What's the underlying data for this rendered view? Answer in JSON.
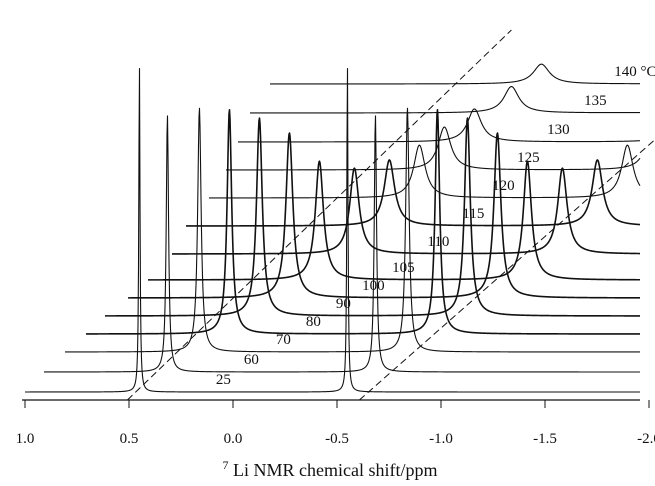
{
  "chart_data": {
    "type": "line",
    "subtype": "stacked-nmr-spectra",
    "title": "",
    "xlabel": "Li NMR chemical shift/ppm",
    "xlabel_superscript": "7",
    "ylabel": "",
    "xlim": [
      1.0,
      -2.0
    ],
    "x_reversed": true,
    "x_ticks": [
      1.0,
      0.5,
      0.0,
      -0.5,
      -1.0,
      -1.5,
      -2.0
    ],
    "x_tick_labels": [
      "1.0",
      "0.5",
      "0.0",
      "-0.5",
      "-1.0",
      "-1.5",
      "-2.0"
    ],
    "temperature_unit": "°C",
    "guide_lines": "dashed",
    "series": [
      {
        "label": "25",
        "temperature": 25,
        "peaks_ppm": [
          0.45,
          -0.55
        ],
        "peak_height": 1.0
      },
      {
        "label": "60",
        "temperature": 60,
        "peaks_ppm": [
          0.45,
          -0.55
        ],
        "peak_height": 0.78
      },
      {
        "label": "70",
        "temperature": 70,
        "peaks_ppm": [
          0.45,
          -0.55
        ],
        "peak_height": 0.74
      },
      {
        "label": "80",
        "temperature": 80,
        "peaks_ppm": [
          0.45,
          -0.55
        ],
        "peak_height": 0.68
      },
      {
        "label": "90",
        "temperature": 90,
        "peaks_ppm": [
          0.45,
          -0.55
        ],
        "peak_height": 0.6
      },
      {
        "label": "100",
        "temperature": 100,
        "peaks_ppm": [
          0.45,
          -0.55
        ],
        "peak_height": 0.5
      },
      {
        "label": "105",
        "temperature": 105,
        "peaks_ppm": [
          0.45,
          -0.55
        ],
        "peak_height": 0.36
      },
      {
        "label": "110",
        "temperature": 110,
        "peaks_ppm": [
          0.45,
          -0.55
        ],
        "peak_height": 0.26
      },
      {
        "label": "115",
        "temperature": 115,
        "peaks_ppm": [
          0.45,
          -0.55
        ],
        "peak_height": 0.2
      },
      {
        "label": "120",
        "temperature": 120,
        "peaks_ppm": [
          0.45,
          -0.55
        ],
        "peak_height": 0.16
      },
      {
        "label": "125",
        "temperature": 125,
        "peaks_ppm": [
          0.45,
          -0.55
        ],
        "peak_height": 0.13
      },
      {
        "label": "130",
        "temperature": 130,
        "peaks_ppm": [
          0.45,
          -0.55
        ],
        "peak_height": 0.1
      },
      {
        "label": "135",
        "temperature": 135,
        "peaks_ppm": [
          0.45,
          -0.55
        ],
        "peak_height": 0.08
      },
      {
        "label": "140 °C",
        "temperature": 140,
        "peaks_ppm": [
          0.45,
          -0.55
        ],
        "peak_height": 0.06
      }
    ]
  }
}
